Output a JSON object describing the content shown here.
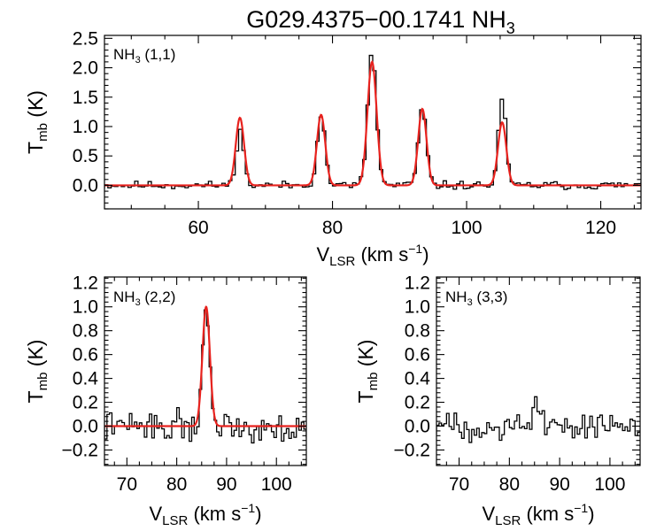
{
  "title": "G029.4375−00.1741 NH",
  "title_sub": "3",
  "colors": {
    "data": "#000000",
    "fit": "#e8221e",
    "axes": "#000000"
  },
  "chart_data": [
    {
      "id": "p11",
      "type": "line",
      "label": "NH",
      "label_sub": "3",
      "label_rest": " (1,1)",
      "ylabel": "T",
      "ylabel_sub": "mb",
      "ylabel_rest": " (K)",
      "xlabel": "V",
      "xlabel_sub": "LSR",
      "xlabel_rest": " (km s",
      "xlabel_sup": "−1",
      "xlabel_end": ")",
      "xlim": [
        46,
        126
      ],
      "ylim": [
        -0.4,
        2.55
      ],
      "xticks": [
        60,
        80,
        100,
        120
      ],
      "xtick_labels": [
        "60",
        "80",
        "100",
        "120"
      ],
      "yticks": [
        0.0,
        0.5,
        1.0,
        1.5,
        2.0,
        2.5
      ],
      "ytick_labels": [
        "0.0",
        "0.5",
        "1.0",
        "1.5",
        "2.0",
        "2.5"
      ],
      "noise": 0.035,
      "seed": 11,
      "channel_width": 0.5,
      "peaks_observed": [
        {
          "center": 66.2,
          "amp": 0.95,
          "sigma": 0.55
        },
        {
          "center": 78.3,
          "amp": 1.18,
          "sigma": 0.6
        },
        {
          "center": 85.9,
          "amp": 2.25,
          "sigma": 0.65
        },
        {
          "center": 93.4,
          "amp": 1.3,
          "sigma": 0.6
        },
        {
          "center": 105.3,
          "amp": 1.5,
          "sigma": 0.55
        }
      ],
      "peaks_fit": [
        {
          "center": 66.2,
          "amp": 1.15,
          "sigma": 0.62
        },
        {
          "center": 78.3,
          "amp": 1.2,
          "sigma": 0.62
        },
        {
          "center": 85.9,
          "amp": 2.1,
          "sigma": 0.68
        },
        {
          "center": 93.4,
          "amp": 1.3,
          "sigma": 0.62
        },
        {
          "center": 105.3,
          "amp": 1.07,
          "sigma": 0.62
        }
      ]
    },
    {
      "id": "p22",
      "type": "line",
      "label": "NH",
      "label_sub": "3",
      "label_rest": " (2,2)",
      "ylabel": "T",
      "ylabel_sub": "mb",
      "ylabel_rest": " (K)",
      "xlabel": "V",
      "xlabel_sub": "LSR",
      "xlabel_rest": " (km s",
      "xlabel_sup": "−1",
      "xlabel_end": ")",
      "xlim": [
        65.5,
        106
      ],
      "ylim": [
        -0.33,
        1.25
      ],
      "xticks": [
        70,
        80,
        90,
        100
      ],
      "xtick_labels": [
        "70",
        "80",
        "90",
        "100"
      ],
      "yticks": [
        -0.2,
        0.0,
        0.2,
        0.4,
        0.6,
        0.8,
        1.0,
        1.2
      ],
      "ytick_labels": [
        "−0.2",
        "0.0",
        "0.2",
        "0.4",
        "0.6",
        "0.8",
        "1.0",
        "1.2"
      ],
      "noise": 0.06,
      "seed": 22,
      "channel_width": 0.5,
      "peaks_observed": [
        {
          "center": 85.9,
          "amp": 1.02,
          "sigma": 0.7
        }
      ],
      "peaks_fit": [
        {
          "center": 85.9,
          "amp": 1.0,
          "sigma": 0.75
        }
      ]
    },
    {
      "id": "p33",
      "type": "line",
      "label": "NH",
      "label_sub": "3",
      "label_rest": " (3,3)",
      "ylabel": "T",
      "ylabel_sub": "mb",
      "ylabel_rest": " (K)",
      "xlabel": "V",
      "xlabel_sub": "LSR",
      "xlabel_rest": " (km s",
      "xlabel_sup": "−1",
      "xlabel_end": ")",
      "xlim": [
        65.5,
        106
      ],
      "ylim": [
        -0.33,
        1.25
      ],
      "xticks": [
        70,
        80,
        90,
        100
      ],
      "xtick_labels": [
        "70",
        "80",
        "90",
        "100"
      ],
      "yticks": [
        -0.2,
        0.0,
        0.2,
        0.4,
        0.6,
        0.8,
        1.0,
        1.2
      ],
      "ytick_labels": [
        "−0.2",
        "0.0",
        "0.2",
        "0.4",
        "0.6",
        "0.8",
        "1.0",
        "1.2"
      ],
      "noise": 0.055,
      "seed": 33,
      "channel_width": 0.5,
      "peaks_observed": [
        {
          "center": 85.5,
          "amp": 0.18,
          "sigma": 0.9
        }
      ],
      "peaks_fit": []
    }
  ]
}
